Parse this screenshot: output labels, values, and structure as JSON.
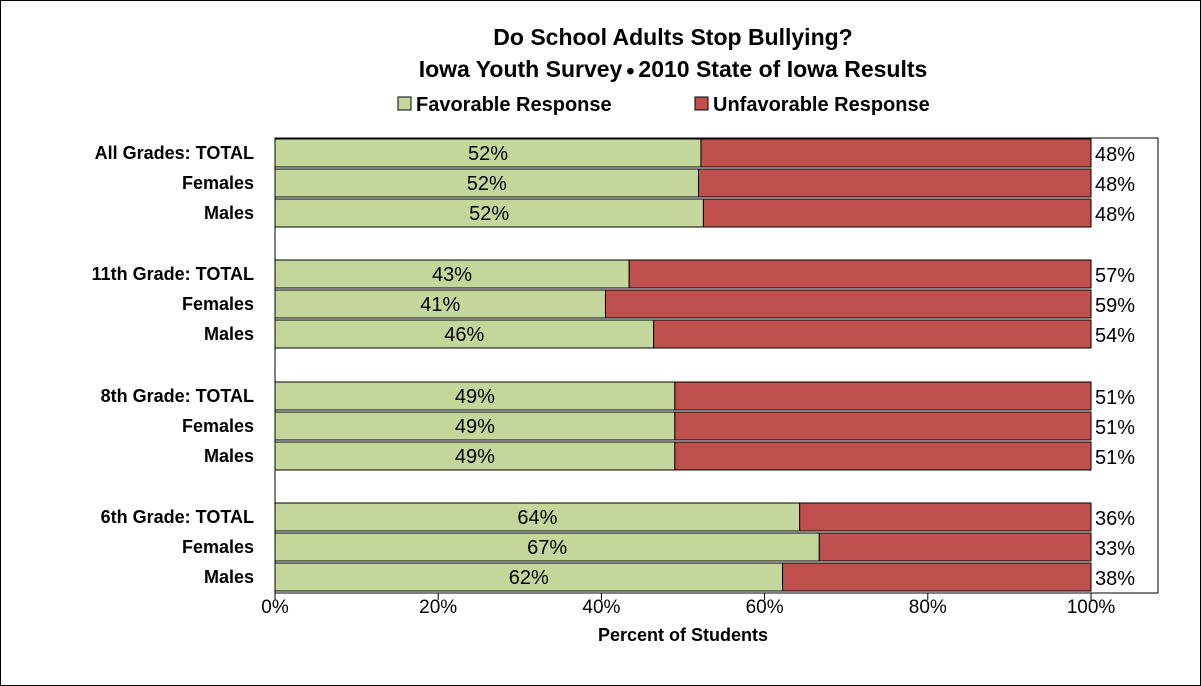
{
  "chart_data": {
    "type": "bar",
    "orientation": "horizontal",
    "stacked": "percent",
    "title": "Do School Adults Stop Bullying?",
    "subtitle_parts": [
      "Iowa Youth Survey",
      "•",
      "2010 State of Iowa Results"
    ],
    "xlabel": "Percent of Students",
    "xlim": [
      0,
      100
    ],
    "x_ticks": [
      "0%",
      "20%",
      "40%",
      "60%",
      "80%",
      "100%"
    ],
    "grid": false,
    "legend_position": "top",
    "categories": [
      "All Grades:  TOTAL",
      "Females",
      "Males",
      "11th Grade:  TOTAL",
      "Females",
      "Males",
      "8th Grade:  TOTAL",
      "Females",
      "Males",
      "6th Grade:  TOTAL",
      "Females",
      "Males"
    ],
    "groups": [
      {
        "start": 0,
        "size": 3
      },
      {
        "start": 3,
        "size": 3
      },
      {
        "start": 6,
        "size": 3
      },
      {
        "start": 9,
        "size": 3
      }
    ],
    "series": [
      {
        "name": "Favorable Response",
        "color": "#c4d79b",
        "values": [
          52.2,
          51.9,
          52.5,
          43.4,
          40.5,
          46.4,
          49,
          49,
          49,
          64.3,
          66.7,
          62.2
        ],
        "labels": [
          "52%",
          "52%",
          "52%",
          "43%",
          "41%",
          "46%",
          "49%",
          "49%",
          "49%",
          "64%",
          "67%",
          "62%"
        ]
      },
      {
        "name": "Unfavorable Response",
        "color": "#c0504d",
        "values": [
          47.8,
          48.1,
          47.5,
          56.6,
          59.5,
          53.6,
          51,
          51,
          51,
          35.7,
          33.3,
          37.8
        ],
        "labels": [
          "48%",
          "48%",
          "48%",
          "57%",
          "59%",
          "54%",
          "51%",
          "51%",
          "51%",
          "36%",
          "33%",
          "38%"
        ]
      }
    ]
  }
}
